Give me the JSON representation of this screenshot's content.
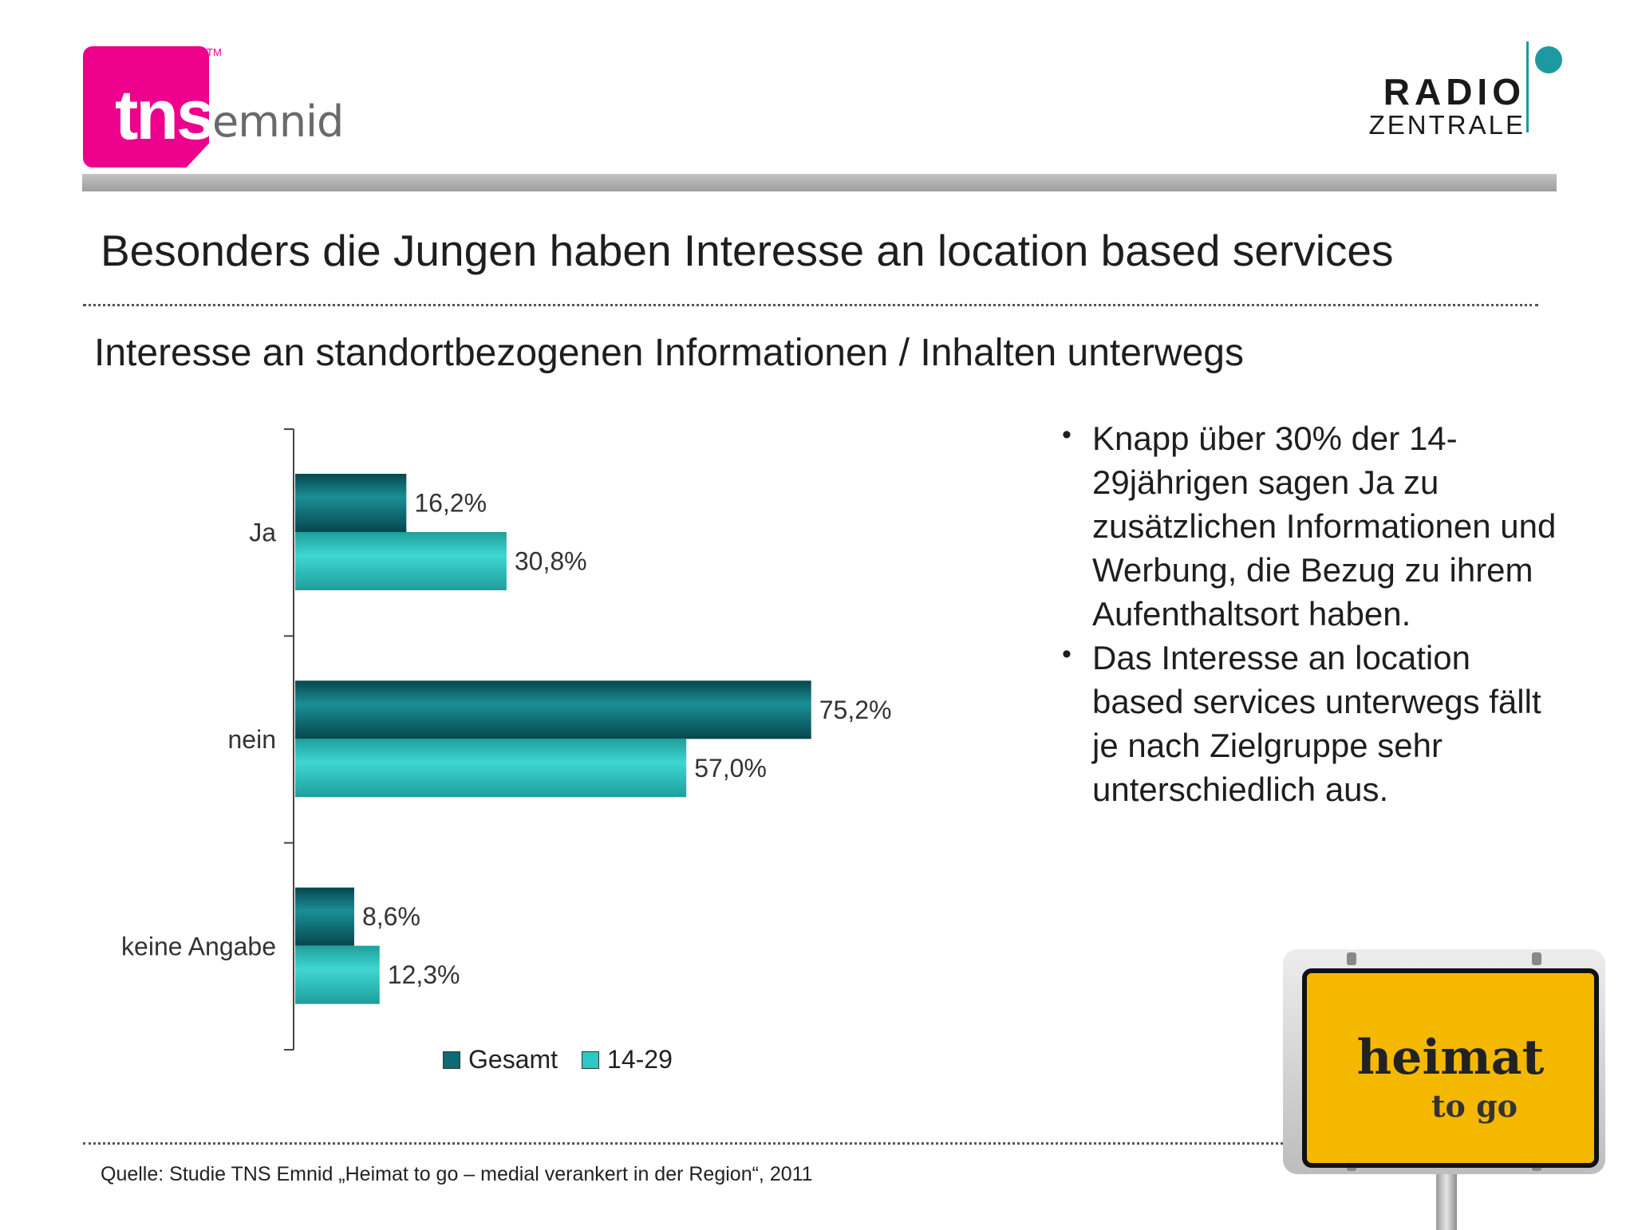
{
  "logos": {
    "tns_text": "tns",
    "tns_tm": "TM",
    "tns_emnid": "emnid",
    "radio": "RADIO",
    "zentrale": "ZENTRALE"
  },
  "title": "Besonders die Jungen haben Interesse an location based services",
  "subtitle": "Interesse an standortbezogenen Informationen / Inhalten unterwegs",
  "chart_data": {
    "type": "bar",
    "orientation": "horizontal",
    "categories": [
      "Ja",
      "nein",
      "keine Angabe"
    ],
    "series": [
      {
        "name": "Gesamt",
        "values": [
          16.2,
          75.2,
          8.6
        ],
        "labels": [
          "16,2%",
          "75,2%",
          "8,6%"
        ],
        "color": "#0e6b72"
      },
      {
        "name": "14-29",
        "values": [
          30.8,
          57.0,
          12.3
        ],
        "labels": [
          "30,8%",
          "57,0%",
          "12,3%"
        ],
        "color": "#2ec8c4"
      }
    ],
    "xlim": [
      0,
      100
    ],
    "grid": false,
    "legend": "bottom"
  },
  "bullets": [
    "Knapp über 30% der 14-29jährigen sagen Ja zu zusätzlichen Informationen und Werbung, die Bezug zu ihrem Aufenthaltsort haben.",
    "Das Interesse an location based services unterwegs fällt je nach Zielgruppe sehr unterschiedlich aus."
  ],
  "bullet_symbol": "•",
  "source": "Quelle: Studie TNS Emnid „Heimat to go  – medial verankert in der Region“, 2011",
  "sign": {
    "line1": "heimat",
    "line2": "to go"
  }
}
